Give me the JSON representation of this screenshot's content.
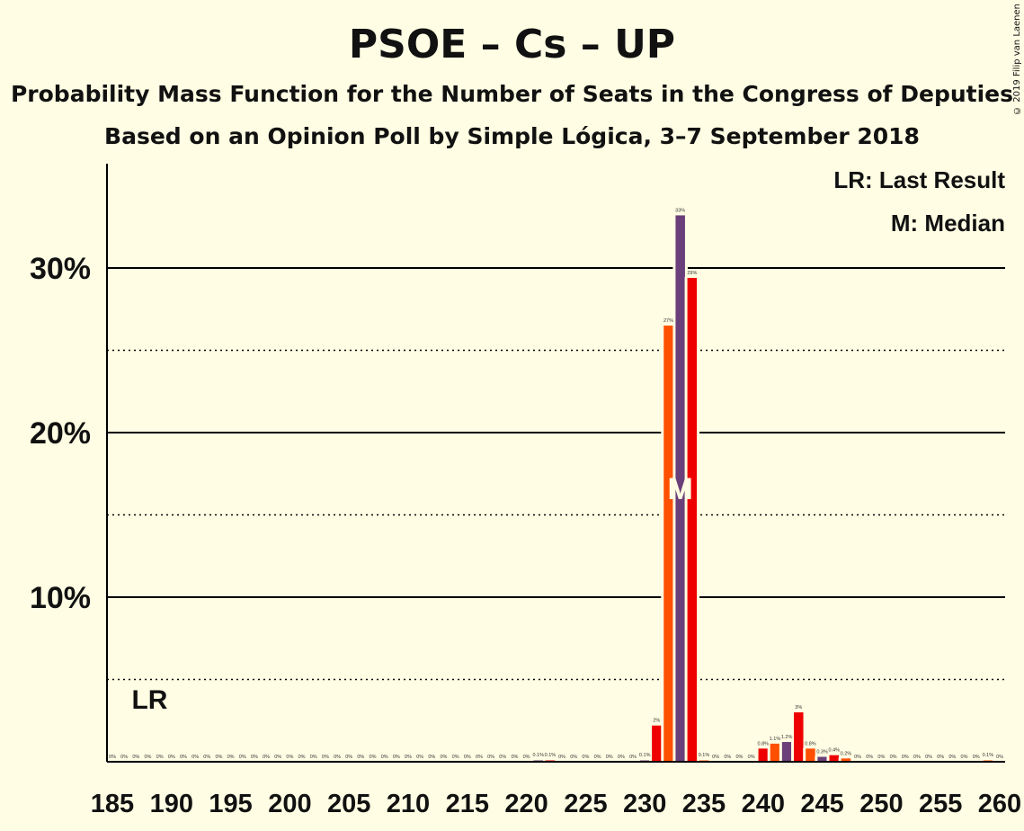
{
  "title": "PSOE – Cs – UP",
  "subtitle": "Probability Mass Function for the Number of Seats in the Congress of Deputies",
  "subtitle2": "Based on an Opinion Poll by Simple Lógica, 3–7 September 2018",
  "copyright": "© 2019 Filip van Laenen",
  "legend": {
    "lr": "LR: Last Result",
    "median": "M: Median"
  },
  "markers": {
    "lr_label": "LR",
    "lr_seat": 188,
    "median_label": "M",
    "median_seat": 233
  },
  "colors": {
    "background": "#fffde3",
    "red": "#ee0000",
    "orange": "#ff4f00",
    "purple": "#6b3f7a"
  },
  "chart_data": {
    "type": "bar",
    "xlim": [
      185,
      260
    ],
    "ylim": [
      0,
      36
    ],
    "x_ticks": [
      185,
      190,
      195,
      200,
      205,
      210,
      215,
      220,
      225,
      230,
      235,
      240,
      245,
      250,
      255,
      260
    ],
    "y_ticks_major": [
      10,
      20,
      30
    ],
    "y_ticks_minor": [
      5,
      15,
      25
    ],
    "y_tick_labels": [
      "10%",
      "20%",
      "30%"
    ],
    "bars": [
      {
        "seat": 185,
        "value": 0,
        "label": "0%"
      },
      {
        "seat": 186,
        "value": 0,
        "label": "0%"
      },
      {
        "seat": 187,
        "value": 0,
        "label": "0%"
      },
      {
        "seat": 188,
        "value": 0,
        "label": "0%"
      },
      {
        "seat": 189,
        "value": 0,
        "label": "0%"
      },
      {
        "seat": 190,
        "value": 0,
        "label": "0%"
      },
      {
        "seat": 191,
        "value": 0,
        "label": "0%"
      },
      {
        "seat": 192,
        "value": 0,
        "label": "0%"
      },
      {
        "seat": 193,
        "value": 0,
        "label": "0%"
      },
      {
        "seat": 194,
        "value": 0,
        "label": "0%"
      },
      {
        "seat": 195,
        "value": 0,
        "label": "0%"
      },
      {
        "seat": 196,
        "value": 0,
        "label": "0%"
      },
      {
        "seat": 197,
        "value": 0,
        "label": "0%"
      },
      {
        "seat": 198,
        "value": 0,
        "label": "0%"
      },
      {
        "seat": 199,
        "value": 0,
        "label": "0%"
      },
      {
        "seat": 200,
        "value": 0,
        "label": "0%"
      },
      {
        "seat": 201,
        "value": 0,
        "label": "0%"
      },
      {
        "seat": 202,
        "value": 0,
        "label": "0%"
      },
      {
        "seat": 203,
        "value": 0,
        "label": "0%"
      },
      {
        "seat": 204,
        "value": 0,
        "label": "0%"
      },
      {
        "seat": 205,
        "value": 0,
        "label": "0%"
      },
      {
        "seat": 206,
        "value": 0,
        "label": "0%"
      },
      {
        "seat": 207,
        "value": 0,
        "label": "0%"
      },
      {
        "seat": 208,
        "value": 0,
        "label": "0%"
      },
      {
        "seat": 209,
        "value": 0,
        "label": "0%"
      },
      {
        "seat": 210,
        "value": 0,
        "label": "0%"
      },
      {
        "seat": 211,
        "value": 0,
        "label": "0%"
      },
      {
        "seat": 212,
        "value": 0,
        "label": "0%"
      },
      {
        "seat": 213,
        "value": 0,
        "label": "0%"
      },
      {
        "seat": 214,
        "value": 0,
        "label": "0%"
      },
      {
        "seat": 215,
        "value": 0,
        "label": "0%"
      },
      {
        "seat": 216,
        "value": 0,
        "label": "0%"
      },
      {
        "seat": 217,
        "value": 0,
        "label": "0%"
      },
      {
        "seat": 218,
        "value": 0,
        "label": "0%"
      },
      {
        "seat": 219,
        "value": 0,
        "label": "0%"
      },
      {
        "seat": 220,
        "value": 0,
        "label": "0%"
      },
      {
        "seat": 221,
        "value": 0.1,
        "label": "0.1%"
      },
      {
        "seat": 222,
        "value": 0.1,
        "label": "0.1%"
      },
      {
        "seat": 223,
        "value": 0,
        "label": "0%"
      },
      {
        "seat": 224,
        "value": 0,
        "label": "0%"
      },
      {
        "seat": 225,
        "value": 0,
        "label": "0%"
      },
      {
        "seat": 226,
        "value": 0,
        "label": "0%"
      },
      {
        "seat": 227,
        "value": 0,
        "label": "0%"
      },
      {
        "seat": 228,
        "value": 0,
        "label": "0%"
      },
      {
        "seat": 229,
        "value": 0,
        "label": "0%"
      },
      {
        "seat": 230,
        "value": 0.1,
        "label": "0.1%"
      },
      {
        "seat": 231,
        "value": 2.2,
        "label": "2%"
      },
      {
        "seat": 232,
        "value": 26.5,
        "label": "27%"
      },
      {
        "seat": 233,
        "value": 33.2,
        "label": "33%"
      },
      {
        "seat": 234,
        "value": 29.4,
        "label": "29%"
      },
      {
        "seat": 235,
        "value": 0.1,
        "label": "0.1%"
      },
      {
        "seat": 236,
        "value": 0,
        "label": "0%"
      },
      {
        "seat": 237,
        "value": 0,
        "label": "0%"
      },
      {
        "seat": 238,
        "value": 0,
        "label": "0%"
      },
      {
        "seat": 239,
        "value": 0,
        "label": "0%"
      },
      {
        "seat": 240,
        "value": 0.8,
        "label": "0.8%"
      },
      {
        "seat": 241,
        "value": 1.1,
        "label": "1.1%"
      },
      {
        "seat": 242,
        "value": 1.2,
        "label": "1.2%"
      },
      {
        "seat": 243,
        "value": 3.0,
        "label": "3%"
      },
      {
        "seat": 244,
        "value": 0.8,
        "label": "0.8%"
      },
      {
        "seat": 245,
        "value": 0.3,
        "label": "0.3%"
      },
      {
        "seat": 246,
        "value": 0.4,
        "label": "0.4%"
      },
      {
        "seat": 247,
        "value": 0.2,
        "label": "0.2%"
      },
      {
        "seat": 248,
        "value": 0,
        "label": "0%"
      },
      {
        "seat": 249,
        "value": 0,
        "label": "0%"
      },
      {
        "seat": 250,
        "value": 0,
        "label": "0%"
      },
      {
        "seat": 251,
        "value": 0,
        "label": "0%"
      },
      {
        "seat": 252,
        "value": 0,
        "label": "0%"
      },
      {
        "seat": 253,
        "value": 0,
        "label": "0%"
      },
      {
        "seat": 254,
        "value": 0,
        "label": "0%"
      },
      {
        "seat": 255,
        "value": 0,
        "label": "0%"
      },
      {
        "seat": 256,
        "value": 0,
        "label": "0%"
      },
      {
        "seat": 257,
        "value": 0,
        "label": "0%"
      },
      {
        "seat": 258,
        "value": 0,
        "label": "0%"
      },
      {
        "seat": 259,
        "value": 0.1,
        "label": "0.1%"
      },
      {
        "seat": 260,
        "value": 0,
        "label": "0%"
      }
    ]
  }
}
